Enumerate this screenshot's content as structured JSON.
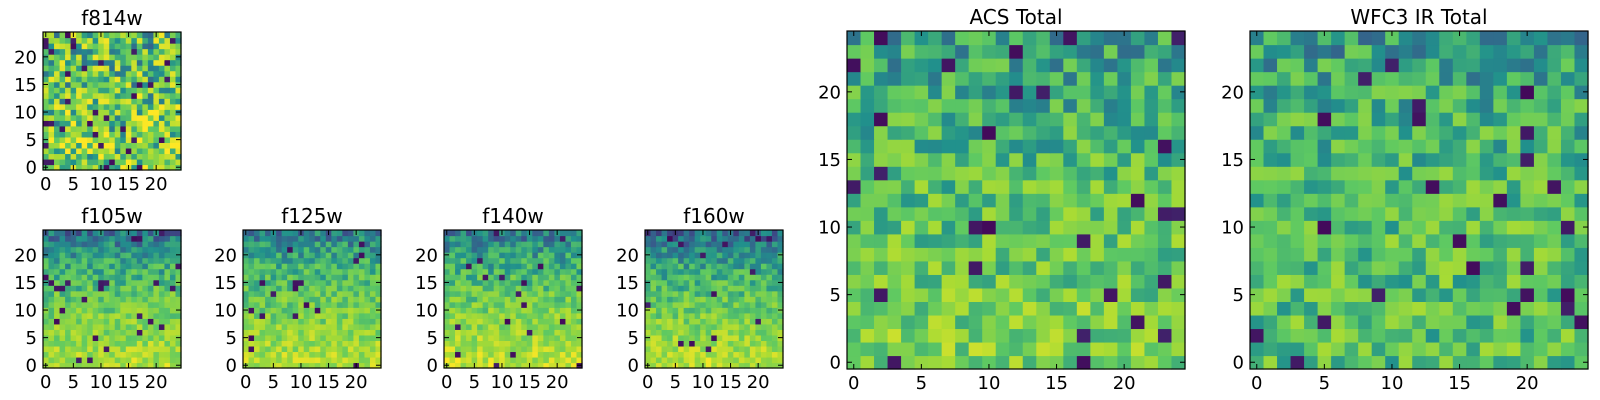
{
  "colormap": {
    "name": "viridis",
    "stops": [
      "#440154",
      "#3b528b",
      "#21918c",
      "#5ec962",
      "#a8db34",
      "#fde725"
    ]
  },
  "axis_color": "#000000",
  "chart_data": [
    {
      "type": "heatmap",
      "title": "f814w",
      "grid": false,
      "xlim": [
        0,
        24
      ],
      "ylim": [
        0,
        24
      ],
      "xticks": [
        0,
        5,
        10,
        15,
        20
      ],
      "yticks": [
        0,
        5,
        10,
        15,
        20
      ],
      "value_range": [
        0,
        1
      ],
      "seed": 11,
      "base": 0.62,
      "noise": 0.36,
      "grad_bottom": 0.12,
      "dark_frac": 0.05
    },
    {
      "type": "heatmap",
      "title": "f105w",
      "grid": false,
      "xlim": [
        0,
        24
      ],
      "ylim": [
        0,
        24
      ],
      "xticks": [
        0,
        5,
        10,
        15,
        20
      ],
      "yticks": [
        0,
        5,
        10,
        15,
        20
      ],
      "value_range": [
        0,
        1
      ],
      "seed": 23,
      "base": 0.62,
      "noise": 0.16,
      "grad_bottom": 0.2,
      "grad_top": -0.32,
      "dark_frac": 0.03
    },
    {
      "type": "heatmap",
      "title": "f125w",
      "grid": false,
      "xlim": [
        0,
        24
      ],
      "ylim": [
        0,
        24
      ],
      "xticks": [
        0,
        5,
        10,
        15,
        20
      ],
      "yticks": [
        0,
        5,
        10,
        15,
        20
      ],
      "value_range": [
        0,
        1
      ],
      "seed": 37,
      "base": 0.62,
      "noise": 0.16,
      "grad_bottom": 0.2,
      "grad_top": -0.28,
      "dark_frac": 0.03
    },
    {
      "type": "heatmap",
      "title": "f140w",
      "grid": false,
      "xlim": [
        0,
        24
      ],
      "ylim": [
        0,
        24
      ],
      "xticks": [
        0,
        5,
        10,
        15,
        20
      ],
      "yticks": [
        0,
        5,
        10,
        15,
        20
      ],
      "value_range": [
        0,
        1
      ],
      "seed": 41,
      "base": 0.62,
      "noise": 0.16,
      "grad_bottom": 0.24,
      "grad_top": -0.3,
      "dark_frac": 0.03
    },
    {
      "type": "heatmap",
      "title": "f160w",
      "grid": false,
      "xlim": [
        0,
        24
      ],
      "ylim": [
        0,
        24
      ],
      "xticks": [
        0,
        5,
        10,
        15,
        20
      ],
      "yticks": [
        0,
        5,
        10,
        15,
        20
      ],
      "value_range": [
        0,
        1
      ],
      "seed": 53,
      "base": 0.6,
      "noise": 0.16,
      "grad_bottom": 0.24,
      "grad_top": -0.34,
      "dark_frac": 0.03
    },
    {
      "type": "heatmap",
      "title": "ACS Total",
      "grid": false,
      "xlim": [
        0,
        24
      ],
      "ylim": [
        0,
        24
      ],
      "xticks": [
        0,
        5,
        10,
        15,
        20
      ],
      "yticks": [
        0,
        5,
        10,
        15,
        20
      ],
      "value_range": [
        0,
        1
      ],
      "seed": 67,
      "base": 0.6,
      "noise": 0.2,
      "grad_bottom": 0.1,
      "grad_top": -0.14,
      "dark_frac": 0.04
    },
    {
      "type": "heatmap",
      "title": "WFC3 IR Total",
      "grid": false,
      "xlim": [
        0,
        24
      ],
      "ylim": [
        0,
        24
      ],
      "xticks": [
        0,
        5,
        10,
        15,
        20
      ],
      "yticks": [
        0,
        5,
        10,
        15,
        20
      ],
      "value_range": [
        0,
        1
      ],
      "seed": 79,
      "base": 0.6,
      "noise": 0.2,
      "grad_bottom": 0.0,
      "grad_top": -0.16,
      "dark_frac": 0.04
    }
  ]
}
